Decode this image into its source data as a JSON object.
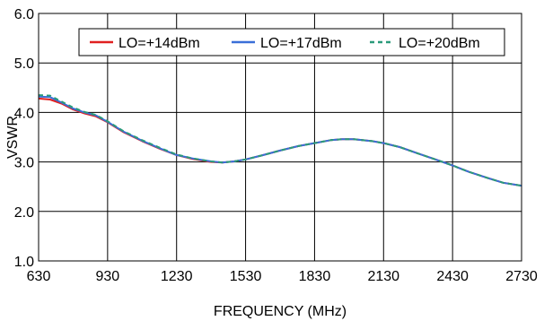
{
  "chart_data": {
    "type": "line",
    "xlabel": "FREQUENCY (MHz)",
    "ylabel": "VSWR",
    "xlim": [
      630,
      2730
    ],
    "ylim": [
      1.0,
      6.0
    ],
    "xticks": [
      630,
      930,
      1230,
      1530,
      1830,
      2130,
      2430,
      2730
    ],
    "yticks": [
      1.0,
      2.0,
      3.0,
      4.0,
      5.0,
      6.0
    ],
    "xtick_labels": [
      "630",
      "930",
      "1230",
      "1530",
      "1830",
      "2130",
      "2430",
      "2730"
    ],
    "ytick_labels": [
      "1.0",
      "2.0",
      "3.0",
      "4.0",
      "5.0",
      "6.0"
    ],
    "grid": true,
    "legend_position": "top",
    "series": [
      {
        "name": "LO=+14dBm",
        "color": "#e02020",
        "dash": "solid",
        "x": [
          630,
          680,
          730,
          780,
          830,
          880,
          930,
          1000,
          1080,
          1160,
          1230,
          1300,
          1380,
          1430,
          1480,
          1530,
          1600,
          1680,
          1760,
          1830,
          1900,
          1950,
          2000,
          2080,
          2130,
          2200,
          2280,
          2350,
          2430,
          2500,
          2580,
          2650,
          2730
        ],
        "y": [
          4.28,
          4.26,
          4.18,
          4.06,
          3.98,
          3.92,
          3.8,
          3.6,
          3.42,
          3.26,
          3.14,
          3.06,
          3.0,
          2.99,
          3.01,
          3.05,
          3.13,
          3.23,
          3.32,
          3.38,
          3.44,
          3.46,
          3.46,
          3.42,
          3.38,
          3.3,
          3.17,
          3.06,
          2.93,
          2.8,
          2.68,
          2.58,
          2.52
        ]
      },
      {
        "name": "LO=+17dBm",
        "color": "#3a6fd8",
        "dash": "solid",
        "x": [
          630,
          680,
          730,
          780,
          830,
          880,
          930,
          1000,
          1080,
          1160,
          1230,
          1300,
          1380,
          1430,
          1480,
          1530,
          1600,
          1680,
          1760,
          1830,
          1900,
          1950,
          2000,
          2080,
          2130,
          2200,
          2280,
          2350,
          2430,
          2500,
          2580,
          2650,
          2730
        ],
        "y": [
          4.32,
          4.31,
          4.2,
          4.08,
          4.0,
          3.94,
          3.81,
          3.61,
          3.43,
          3.27,
          3.14,
          3.07,
          3.01,
          2.99,
          3.01,
          3.05,
          3.13,
          3.23,
          3.32,
          3.38,
          3.44,
          3.46,
          3.46,
          3.42,
          3.38,
          3.3,
          3.17,
          3.06,
          2.93,
          2.8,
          2.68,
          2.58,
          2.52
        ]
      },
      {
        "name": "LO=+20dBm",
        "color": "#2a9a7a",
        "dash": "dashed",
        "x": [
          630,
          680,
          730,
          780,
          830,
          880,
          930,
          1000,
          1080,
          1160,
          1230,
          1300,
          1380,
          1430,
          1480,
          1530,
          1600,
          1680,
          1760,
          1830,
          1900,
          1950,
          2000,
          2080,
          2130,
          2200,
          2280,
          2350,
          2430,
          2500,
          2580,
          2650,
          2730
        ],
        "y": [
          4.35,
          4.34,
          4.22,
          4.1,
          4.01,
          3.95,
          3.82,
          3.62,
          3.44,
          3.28,
          3.15,
          3.07,
          3.01,
          2.99,
          3.01,
          3.05,
          3.13,
          3.23,
          3.32,
          3.38,
          3.44,
          3.46,
          3.46,
          3.42,
          3.38,
          3.3,
          3.17,
          3.06,
          2.93,
          2.8,
          2.68,
          2.58,
          2.52
        ]
      }
    ]
  }
}
